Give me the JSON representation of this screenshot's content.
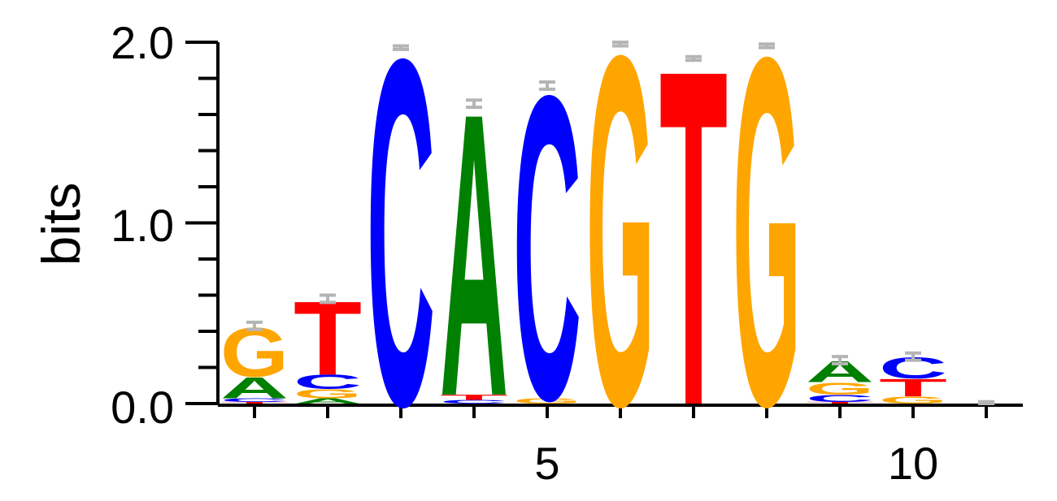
{
  "chart_data": {
    "type": "sequence_logo",
    "ylabel": "bits",
    "ylim": [
      0,
      2.0
    ],
    "y_ticks": [
      "0.0",
      "1.0",
      "2.0"
    ],
    "x_tick_labels": [
      {
        "position": 5,
        "label": "5"
      },
      {
        "position": 10,
        "label": "10"
      }
    ],
    "colors": {
      "A": "#008000",
      "C": "#0000ff",
      "G": "#ffa500",
      "T": "#ff0000",
      "error_bar": "#b5b5b5"
    },
    "positions": [
      {
        "pos": 1,
        "letters": [
          {
            "base": "T",
            "bits": 0.01
          },
          {
            "base": "C",
            "bits": 0.02
          },
          {
            "base": "A",
            "bits": 0.12
          },
          {
            "base": "G",
            "bits": 0.28
          }
        ],
        "error": 0.02
      },
      {
        "pos": 2,
        "letters": [
          {
            "base": "A",
            "bits": 0.03
          },
          {
            "base": "G",
            "bits": 0.05
          },
          {
            "base": "C",
            "bits": 0.08
          },
          {
            "base": "T",
            "bits": 0.42
          }
        ],
        "error": 0.02
      },
      {
        "pos": 3,
        "letters": [
          {
            "base": "C",
            "bits": 1.97
          }
        ],
        "error": 0.01
      },
      {
        "pos": 4,
        "letters": [
          {
            "base": "C",
            "bits": 0.02
          },
          {
            "base": "T",
            "bits": 0.03
          },
          {
            "base": "A",
            "bits": 1.61
          }
        ],
        "error": 0.02
      },
      {
        "pos": 5,
        "letters": [
          {
            "base": "G",
            "bits": 0.03
          },
          {
            "base": "C",
            "bits": 1.73
          }
        ],
        "error": 0.02
      },
      {
        "pos": 6,
        "letters": [
          {
            "base": "G",
            "bits": 1.99
          }
        ],
        "error": 0.01
      },
      {
        "pos": 7,
        "letters": [
          {
            "base": "T",
            "bits": 1.91
          }
        ],
        "error": 0.01
      },
      {
        "pos": 8,
        "letters": [
          {
            "base": "G",
            "bits": 1.98
          }
        ],
        "error": 0.01
      },
      {
        "pos": 9,
        "letters": [
          {
            "base": "T",
            "bits": 0.01
          },
          {
            "base": "C",
            "bits": 0.04
          },
          {
            "base": "G",
            "bits": 0.07
          },
          {
            "base": "A",
            "bits": 0.12
          }
        ],
        "error": 0.02
      },
      {
        "pos": 10,
        "letters": [
          {
            "base": "G",
            "bits": 0.04
          },
          {
            "base": "T",
            "bits": 0.1
          },
          {
            "base": "C",
            "bits": 0.12
          }
        ],
        "error": 0.02
      },
      {
        "pos": 11,
        "letters": [],
        "error": 0.01
      }
    ]
  }
}
